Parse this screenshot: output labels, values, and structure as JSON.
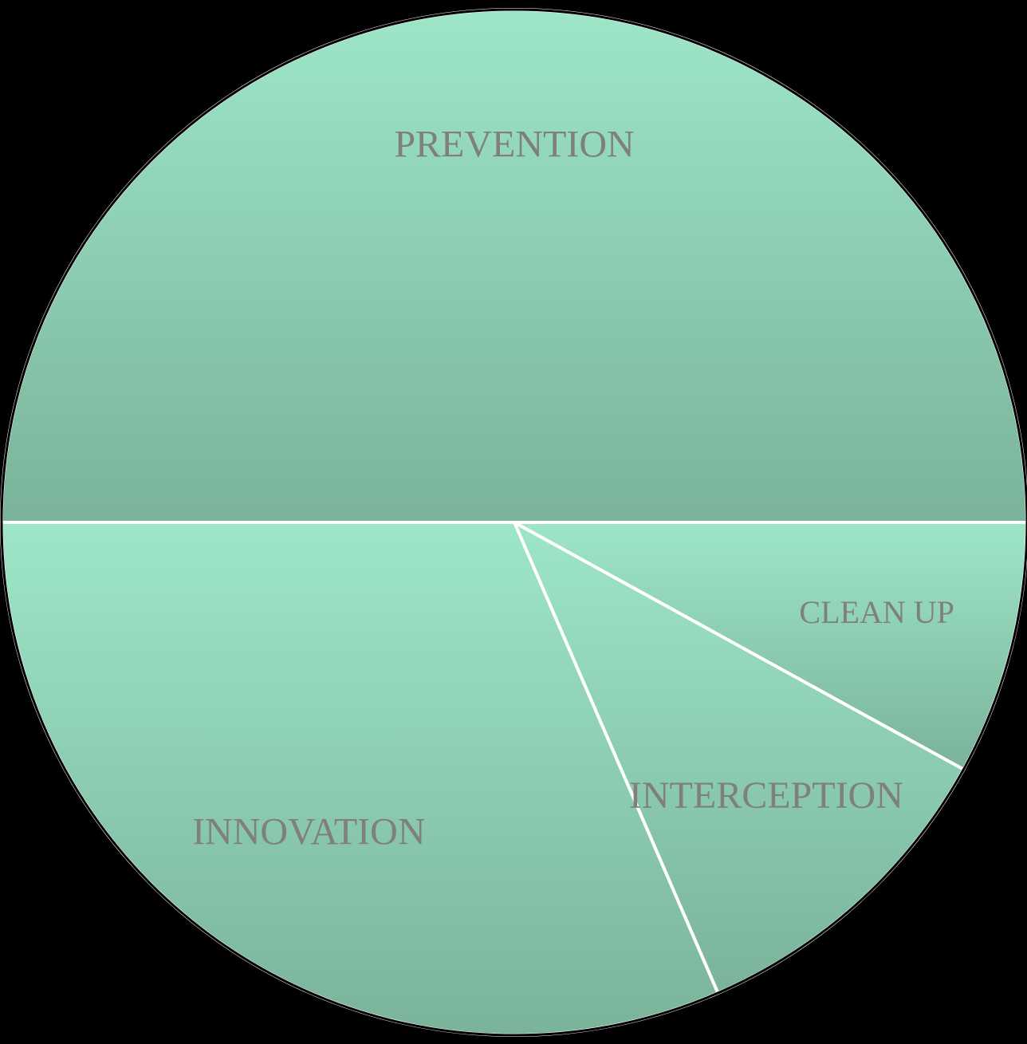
{
  "chart_data": {
    "type": "pie",
    "categories": [
      "PREVENTION",
      "CLEAN UP",
      "INTERCEPTION",
      "INNOVATION"
    ],
    "values": [
      50,
      8,
      10.5,
      31.5
    ],
    "colors": [
      "#9ee6c8",
      "#7ab39a"
    ]
  }
}
